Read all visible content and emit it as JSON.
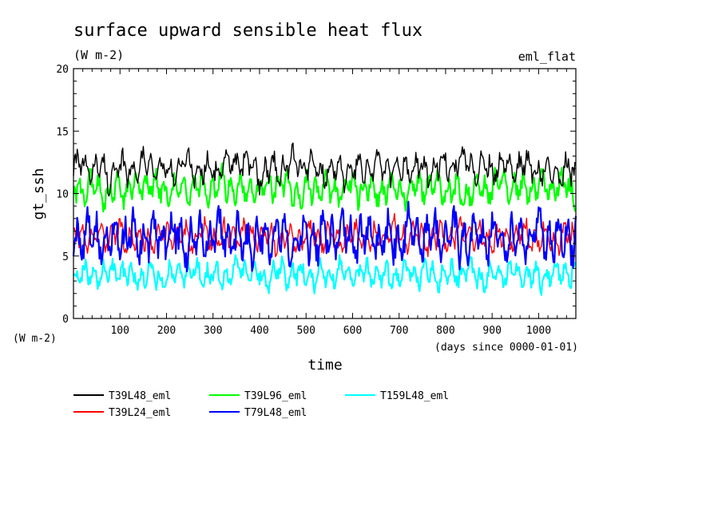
{
  "chart_data": {
    "type": "line",
    "title": "surface upward sensible heat flux",
    "subtitle": "(W m-2)",
    "corner_label": "eml_flat",
    "xlabel": "time",
    "xunits": "(days since 0000-01-01)",
    "ylabel": "gt_ssh",
    "yunits": "(W m-2)",
    "xlim": [
      0,
      1080
    ],
    "ylim": [
      0,
      20
    ],
    "x_ticks": [
      100,
      200,
      300,
      400,
      500,
      600,
      700,
      800,
      900,
      1000
    ],
    "y_ticks": [
      0,
      5,
      10,
      15,
      20
    ],
    "grid": false,
    "legend_position": "bottom",
    "x": [
      0,
      40,
      80,
      120,
      160,
      200,
      240,
      280,
      320,
      360,
      400,
      440,
      480,
      520,
      560,
      600,
      640,
      680,
      720,
      760,
      800,
      840,
      880,
      920,
      960,
      1000,
      1040,
      1080
    ],
    "series": [
      {
        "name": "T39L48_eml",
        "color": "#000000",
        "values": [
          12.0,
          12.2,
          11.5,
          12.0,
          12.4,
          11.6,
          12.3,
          11.8,
          12.1,
          12.5,
          11.7,
          12.0,
          12.6,
          11.8,
          12.0,
          11.6,
          12.2,
          11.9,
          12.1,
          11.7,
          12.4,
          12.6,
          11.9,
          12.2,
          12.3,
          11.8,
          12.0,
          11.5
        ]
      },
      {
        "name": "T39L24_eml",
        "color": "#ff0000",
        "values": [
          6.6,
          6.4,
          6.8,
          6.5,
          6.3,
          6.7,
          6.5,
          6.8,
          6.4,
          6.6,
          6.9,
          6.3,
          6.5,
          6.7,
          6.4,
          6.6,
          6.2,
          6.8,
          6.5,
          6.3,
          6.6,
          6.9,
          6.4,
          6.5,
          6.7,
          6.3,
          6.5,
          6.6
        ]
      },
      {
        "name": "T39L96_eml",
        "color": "#00ff00",
        "values": [
          10.2,
          10.6,
          10.0,
          10.4,
          10.8,
          10.1,
          10.5,
          10.3,
          10.7,
          10.2,
          10.4,
          10.9,
          10.0,
          10.5,
          10.3,
          10.6,
          10.1,
          10.4,
          10.2,
          10.8,
          10.3,
          10.0,
          10.5,
          10.7,
          10.2,
          10.4,
          10.6,
          10.3
        ]
      },
      {
        "name": "T79L48_eml",
        "color": "#0000ff",
        "values": [
          6.5,
          6.8,
          6.2,
          6.7,
          6.4,
          6.9,
          6.3,
          6.6,
          6.8,
          6.2,
          6.5,
          6.7,
          6.4,
          6.3,
          6.9,
          6.5,
          6.6,
          6.2,
          6.8,
          6.4,
          6.7,
          6.3,
          6.6,
          6.5,
          6.2,
          6.8,
          6.4,
          6.6
        ]
      },
      {
        "name": "T159L48_eml",
        "color": "#00ffff",
        "values": [
          3.6,
          3.3,
          3.8,
          3.4,
          3.6,
          3.2,
          3.7,
          3.5,
          3.3,
          3.9,
          3.4,
          3.6,
          3.5,
          3.2,
          3.8,
          3.4,
          3.6,
          3.3,
          3.7,
          3.5,
          3.4,
          3.8,
          3.3,
          3.6,
          3.5,
          3.2,
          3.7,
          3.5
        ]
      }
    ]
  }
}
